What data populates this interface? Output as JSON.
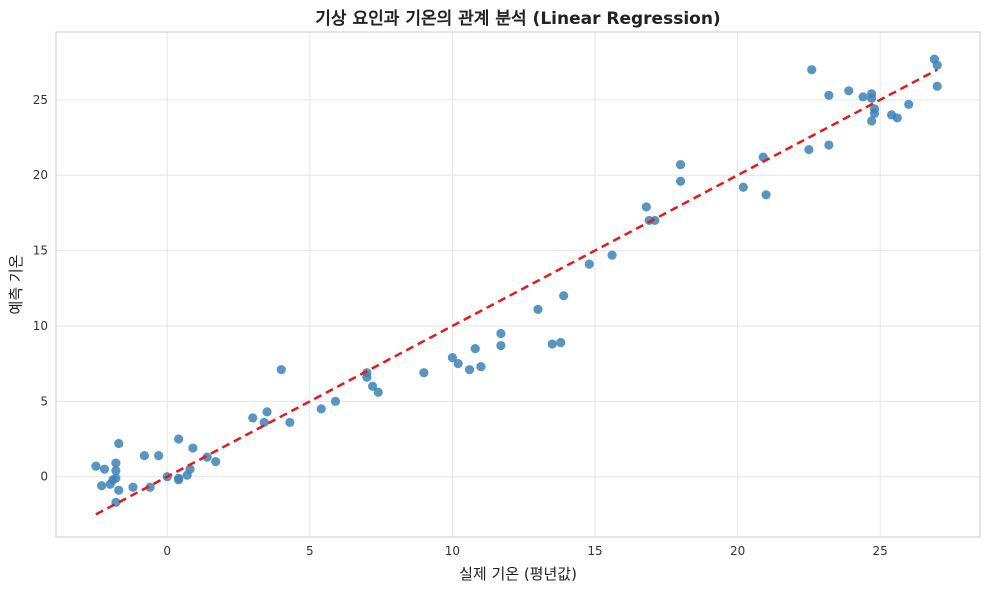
{
  "chart_data": {
    "type": "scatter",
    "title": "기상 요인과 기온의 관계 분석 (Linear Regression)",
    "xlabel": "실제 기온 (평년값)",
    "ylabel": "예측 기온",
    "xlim": [
      -3.9,
      28.5
    ],
    "ylim": [
      -4.0,
      29.5
    ],
    "xticks": [
      0,
      5,
      10,
      15,
      20,
      25
    ],
    "yticks": [
      0,
      5,
      10,
      15,
      20,
      25
    ],
    "grid": true,
    "point_color": "#3b82b8",
    "line_color": "#e31a1c",
    "series": [
      {
        "values": [
          [
            -2.5,
            0.7
          ],
          [
            -2.3,
            -0.6
          ],
          [
            -2.2,
            0.5
          ],
          [
            -2.0,
            -0.5
          ],
          [
            -1.9,
            -0.2
          ],
          [
            -1.8,
            0.9
          ],
          [
            -1.8,
            0.4
          ],
          [
            -1.8,
            -1.7
          ],
          [
            -1.8,
            -0.1
          ],
          [
            -1.7,
            2.2
          ],
          [
            -1.7,
            -0.9
          ],
          [
            -1.2,
            -0.7
          ],
          [
            -0.8,
            1.4
          ],
          [
            -0.6,
            -0.7
          ],
          [
            -0.3,
            1.4
          ],
          [
            0.0,
            0.0
          ],
          [
            0.4,
            2.5
          ],
          [
            0.4,
            -0.1
          ],
          [
            0.4,
            -0.2
          ],
          [
            0.7,
            0.1
          ],
          [
            0.8,
            0.5
          ],
          [
            0.9,
            1.9
          ],
          [
            1.4,
            1.3
          ],
          [
            1.7,
            1.0
          ],
          [
            3.0,
            3.9
          ],
          [
            3.4,
            3.6
          ],
          [
            3.5,
            4.3
          ],
          [
            4.0,
            7.1
          ],
          [
            4.3,
            3.6
          ],
          [
            5.4,
            4.5
          ],
          [
            5.9,
            5.0
          ],
          [
            7.0,
            6.9
          ],
          [
            7.0,
            6.6
          ],
          [
            7.2,
            6.0
          ],
          [
            7.4,
            5.6
          ],
          [
            9.0,
            6.9
          ],
          [
            10.0,
            7.9
          ],
          [
            10.2,
            7.5
          ],
          [
            10.6,
            7.1
          ],
          [
            10.8,
            8.5
          ],
          [
            11.0,
            7.3
          ],
          [
            11.7,
            8.7
          ],
          [
            11.7,
            9.5
          ],
          [
            13.0,
            11.1
          ],
          [
            13.5,
            8.8
          ],
          [
            13.8,
            8.9
          ],
          [
            13.9,
            12.0
          ],
          [
            14.8,
            14.1
          ],
          [
            15.6,
            14.7
          ],
          [
            16.8,
            17.9
          ],
          [
            16.9,
            17.0
          ],
          [
            17.1,
            17.0
          ],
          [
            18.0,
            20.7
          ],
          [
            18.0,
            19.6
          ],
          [
            20.2,
            19.2
          ],
          [
            20.9,
            21.2
          ],
          [
            21.0,
            18.7
          ],
          [
            22.5,
            21.7
          ],
          [
            22.6,
            27.0
          ],
          [
            23.2,
            25.3
          ],
          [
            23.2,
            22.0
          ],
          [
            23.9,
            25.6
          ],
          [
            24.4,
            25.2
          ],
          [
            24.7,
            25.4
          ],
          [
            24.7,
            25.1
          ],
          [
            24.7,
            23.6
          ],
          [
            24.8,
            24.4
          ],
          [
            24.8,
            24.1
          ],
          [
            25.4,
            24.0
          ],
          [
            25.6,
            23.8
          ],
          [
            26.0,
            24.7
          ],
          [
            26.9,
            27.7
          ],
          [
            27.0,
            27.3
          ],
          [
            27.0,
            25.9
          ]
        ]
      }
    ],
    "regression_line": {
      "x": [
        -2.5,
        27.0
      ],
      "y": [
        -2.5,
        27.0
      ],
      "style": "dashed"
    }
  }
}
